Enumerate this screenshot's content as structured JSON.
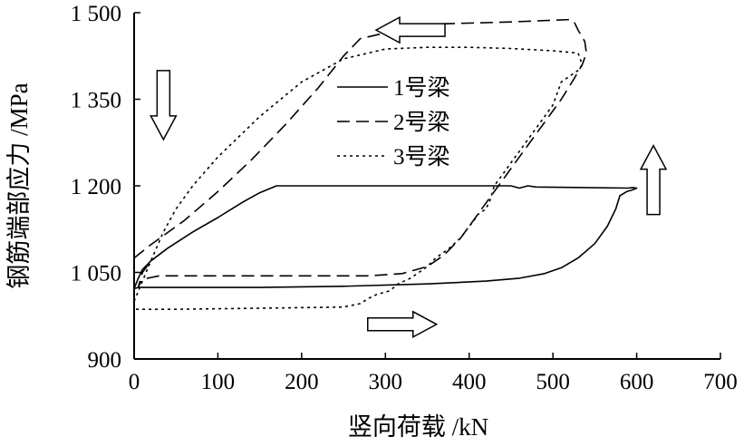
{
  "chart_data": {
    "type": "line",
    "title": "",
    "xlabel": "竖向荷载 /kN",
    "ylabel": "钢筋端部应力 /MPa",
    "xlim": [
      0,
      700
    ],
    "ylim": [
      900,
      1500
    ],
    "xticks": [
      "0",
      "100",
      "200",
      "300",
      "400",
      "500",
      "600",
      "700"
    ],
    "xtick_values": [
      0,
      100,
      200,
      300,
      400,
      500,
      600,
      700
    ],
    "yticks": [
      "900",
      "1 050",
      "1 200",
      "1 350",
      "1 500"
    ],
    "ytick_values": [
      900,
      1050,
      1200,
      1350,
      1500
    ],
    "grid": false,
    "legend_position": "top-center",
    "series": [
      {
        "name": "1号梁",
        "line_style": "solid",
        "x": [
          0,
          5,
          10,
          20,
          40,
          70,
          100,
          130,
          150,
          170,
          300,
          450,
          460,
          470,
          480,
          590,
          595,
          600,
          595,
          588,
          580,
          575,
          565,
          550,
          530,
          510,
          490,
          460,
          420,
          350,
          250,
          150,
          50,
          10,
          5,
          0
        ],
        "y": [
          1022,
          1040,
          1055,
          1070,
          1092,
          1120,
          1145,
          1172,
          1188,
          1200,
          1200,
          1200,
          1196,
          1200,
          1198,
          1196,
          1197,
          1196,
          1193,
          1190,
          1183,
          1160,
          1130,
          1100,
          1075,
          1058,
          1048,
          1040,
          1035,
          1030,
          1026,
          1024,
          1024,
          1024,
          1024,
          1022
        ]
      },
      {
        "name": "2号梁",
        "line_style": "dashed",
        "x": [
          0,
          20,
          60,
          100,
          140,
          180,
          220,
          250,
          270,
          300,
          350,
          400,
          450,
          500,
          520,
          525,
          530,
          538,
          540,
          535,
          525,
          510,
          490,
          470,
          450,
          430,
          410,
          390,
          370,
          350,
          320,
          280,
          200,
          100,
          30,
          10,
          5,
          10,
          20
        ],
        "y": [
          1075,
          1098,
          1140,
          1190,
          1245,
          1305,
          1370,
          1425,
          1455,
          1465,
          1480,
          1482,
          1484,
          1487,
          1488,
          1485,
          1470,
          1450,
          1430,
          1410,
          1385,
          1350,
          1310,
          1270,
          1230,
          1190,
          1150,
          1110,
          1080,
          1060,
          1048,
          1044,
          1044,
          1044,
          1044,
          1038,
          1025,
          1050,
          1070
        ]
      },
      {
        "name": "3号梁",
        "line_style": "dotted",
        "x": [
          0,
          20,
          35,
          50,
          70,
          100,
          150,
          200,
          250,
          300,
          350,
          400,
          450,
          500,
          530,
          535,
          530,
          510,
          505,
          500,
          490,
          480,
          470,
          460,
          450,
          440,
          430,
          425,
          420,
          410,
          405,
          400,
          390,
          375,
          360,
          350,
          330,
          315,
          305,
          290,
          280,
          270,
          250,
          150,
          50,
          0
        ],
        "y": [
          1000,
          1070,
          1120,
          1160,
          1200,
          1250,
          1320,
          1380,
          1420,
          1437,
          1440,
          1440,
          1438,
          1434,
          1430,
          1410,
          1400,
          1380,
          1360,
          1340,
          1320,
          1300,
          1280,
          1260,
          1240,
          1220,
          1200,
          1175,
          1160,
          1150,
          1138,
          1130,
          1110,
          1090,
          1075,
          1060,
          1040,
          1030,
          1018,
          1012,
          1005,
          996,
          990,
          988,
          986,
          986
        ]
      }
    ],
    "annotations": [
      {
        "type": "arrow",
        "direction": "left",
        "near": [
          330,
          1470
        ]
      },
      {
        "type": "arrow",
        "direction": "down",
        "near": [
          35,
          1340
        ]
      },
      {
        "type": "arrow",
        "direction": "up",
        "near": [
          620,
          1210
        ]
      },
      {
        "type": "arrow",
        "direction": "right",
        "near": [
          320,
          960
        ]
      }
    ]
  }
}
